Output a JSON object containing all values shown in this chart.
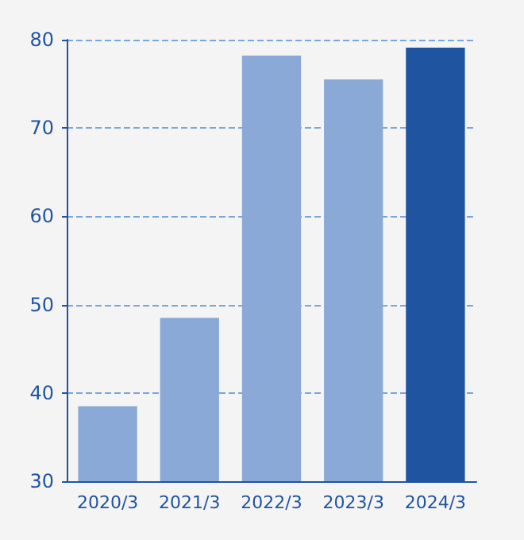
{
  "chart_data": {
    "type": "bar",
    "categories": [
      "2020/3",
      "2021/3",
      "2022/3",
      "2023/3",
      "2024/3"
    ],
    "values": [
      38.5,
      48.5,
      78.2,
      75.5,
      79.1
    ],
    "colors": [
      "#8aa9d6",
      "#8aa9d6",
      "#8aa9d6",
      "#8aa9d6",
      "#1f54a0"
    ],
    "ylim": [
      30,
      80
    ],
    "yticks": [
      30,
      40,
      50,
      60,
      70,
      80
    ],
    "grid": "y"
  }
}
